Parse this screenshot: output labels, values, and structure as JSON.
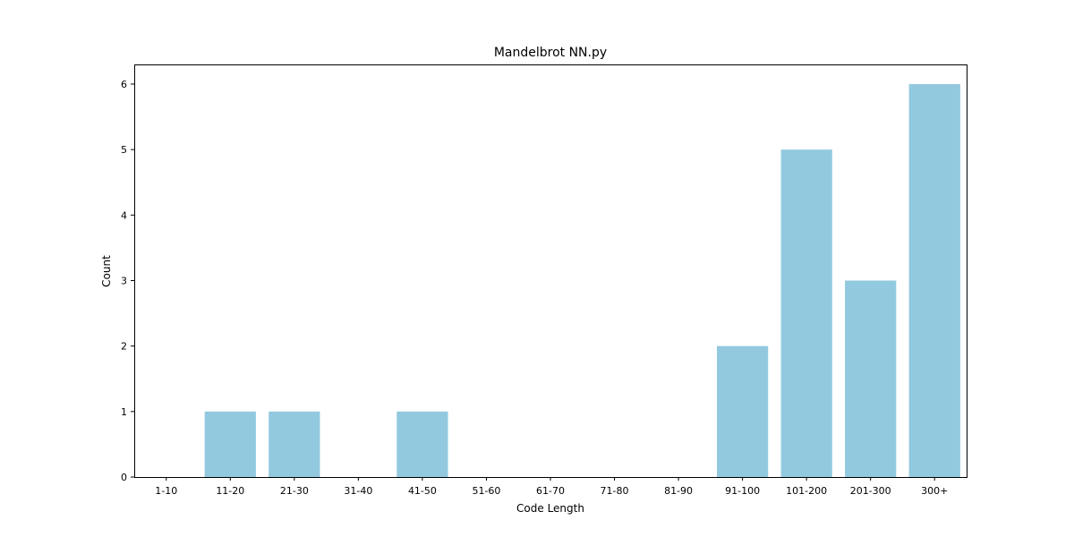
{
  "chart_data": {
    "type": "bar",
    "title": "Mandelbrot NN.py",
    "xlabel": "Code Length",
    "ylabel": "Count",
    "categories": [
      "1-10",
      "11-20",
      "21-30",
      "31-40",
      "41-50",
      "51-60",
      "61-70",
      "71-80",
      "81-90",
      "91-100",
      "101-200",
      "201-300",
      "300+"
    ],
    "values": [
      0,
      1,
      1,
      0,
      1,
      0,
      0,
      0,
      0,
      2,
      5,
      3,
      6
    ],
    "ylim": [
      0,
      6.3
    ],
    "yticks": [
      0,
      1,
      2,
      3,
      4,
      5,
      6
    ],
    "grid": false,
    "legend": "none",
    "bar_color": "#92c9de"
  }
}
